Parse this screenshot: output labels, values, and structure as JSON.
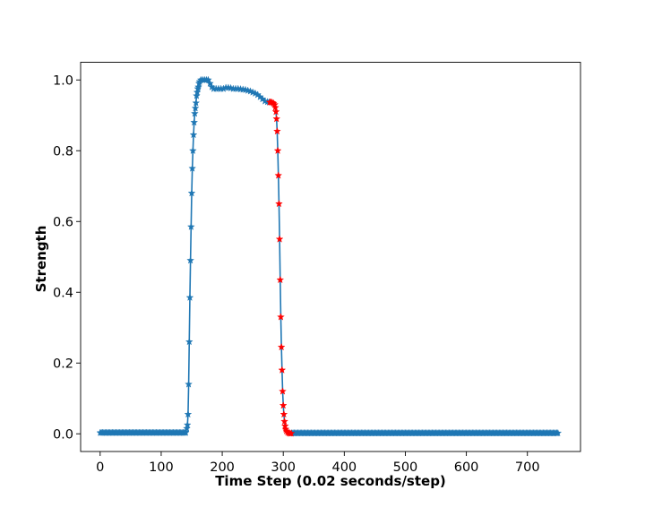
{
  "chart_data": {
    "type": "line",
    "title": "",
    "xlabel": "Time Step (0.02 seconds/step)",
    "ylabel": "Strength",
    "xlim": [
      -32,
      787
    ],
    "ylim": [
      -0.05,
      1.05
    ],
    "xticks": [
      0,
      100,
      200,
      300,
      400,
      500,
      600,
      700
    ],
    "yticks": [
      0.0,
      0.2,
      0.4,
      0.6,
      0.8,
      1.0
    ],
    "ytick_labels": [
      "0.0",
      "0.2",
      "0.4",
      "0.6",
      "0.8",
      "1.0"
    ],
    "grid": false,
    "legend": "none",
    "marker": "star",
    "line_color": "#1f77b4",
    "highlight_color": "#ff0000",
    "segments": [
      {
        "style": "base",
        "x_range": [
          0,
          140
        ],
        "y": 0.003
      },
      {
        "style": "base",
        "points": [
          [
            140,
            0.005
          ],
          [
            142,
            0.015
          ],
          [
            143,
            0.025
          ],
          [
            144,
            0.055
          ],
          [
            145,
            0.14
          ],
          [
            146,
            0.26
          ],
          [
            147,
            0.385
          ],
          [
            148,
            0.49
          ],
          [
            149,
            0.585
          ],
          [
            150,
            0.68
          ],
          [
            151,
            0.75
          ],
          [
            152,
            0.8
          ],
          [
            153,
            0.845
          ],
          [
            154,
            0.88
          ],
          [
            155,
            0.905
          ],
          [
            156,
            0.92
          ],
          [
            157,
            0.935
          ],
          [
            158,
            0.955
          ],
          [
            159,
            0.965
          ],
          [
            160,
            0.975
          ],
          [
            161,
            0.98
          ],
          [
            162,
            0.99
          ],
          [
            163,
            0.995
          ],
          [
            165,
            1.0
          ],
          [
            168,
            1.0
          ],
          [
            171,
            1.0
          ],
          [
            174,
            1.0
          ],
          [
            177,
            1.0
          ],
          [
            180,
            0.99
          ],
          [
            183,
            0.98
          ],
          [
            186,
            0.975
          ],
          [
            190,
            0.975
          ],
          [
            194,
            0.975
          ],
          [
            198,
            0.975
          ],
          [
            202,
            0.975
          ],
          [
            206,
            0.978
          ],
          [
            210,
            0.978
          ],
          [
            214,
            0.977
          ],
          [
            218,
            0.975
          ],
          [
            222,
            0.975
          ],
          [
            226,
            0.975
          ],
          [
            230,
            0.974
          ],
          [
            234,
            0.973
          ],
          [
            238,
            0.972
          ],
          [
            242,
            0.97
          ],
          [
            246,
            0.968
          ],
          [
            250,
            0.965
          ],
          [
            254,
            0.962
          ],
          [
            258,
            0.958
          ],
          [
            262,
            0.952
          ],
          [
            266,
            0.946
          ],
          [
            270,
            0.94
          ],
          [
            274,
            0.938
          ],
          [
            277,
            0.937
          ]
        ]
      },
      {
        "style": "highlight",
        "points": [
          [
            278,
            0.937
          ],
          [
            280,
            0.937
          ],
          [
            282,
            0.936
          ],
          [
            284,
            0.934
          ],
          [
            286,
            0.93
          ],
          [
            287,
            0.922
          ],
          [
            288,
            0.91
          ],
          [
            289,
            0.89
          ],
          [
            290,
            0.855
          ],
          [
            291,
            0.8
          ],
          [
            292,
            0.73
          ],
          [
            293,
            0.65
          ],
          [
            294,
            0.55
          ],
          [
            295,
            0.435
          ],
          [
            296,
            0.33
          ],
          [
            297,
            0.245
          ],
          [
            298,
            0.18
          ],
          [
            299,
            0.12
          ],
          [
            300,
            0.08
          ],
          [
            301,
            0.055
          ],
          [
            302,
            0.035
          ],
          [
            303,
            0.022
          ],
          [
            304,
            0.013
          ],
          [
            305,
            0.008
          ],
          [
            307,
            0.004
          ],
          [
            309,
            0.002
          ],
          [
            311,
            0.001
          ],
          [
            313,
            0.001
          ]
        ]
      },
      {
        "style": "base",
        "x_range": [
          314,
          750
        ],
        "y": 0.002
      }
    ]
  }
}
